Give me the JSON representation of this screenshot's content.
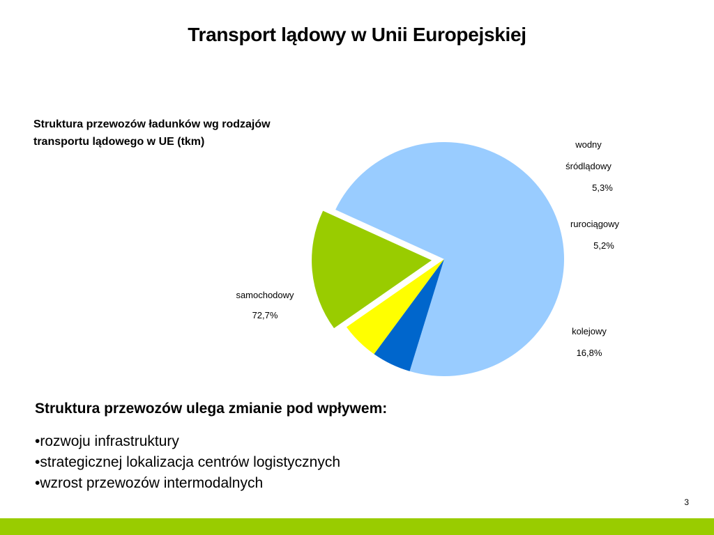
{
  "slide": {
    "title": "Transport lądowy w Unii Europejskiej",
    "page_number": "3",
    "footer_color": "#99cc00"
  },
  "chart_data": {
    "type": "pie",
    "title_lines": [
      "Struktura przewozów ładunków wg rodzajów",
      "transportu lądowego w UE (tkm)"
    ],
    "slices": [
      {
        "name": "samochodowy",
        "value": 72.7,
        "label": "72,7%",
        "color": "#99ccff"
      },
      {
        "name": "wodny śródlądowy",
        "name_lines": [
          "wodny",
          "śródlądowy"
        ],
        "value": 5.3,
        "label": "5,3%",
        "color": "#0066cc"
      },
      {
        "name": "rurociągowy",
        "value": 5.2,
        "label": "5,2%",
        "color": "#ffff00"
      },
      {
        "name": "kolejowy",
        "value": 16.8,
        "label": "16,8%",
        "color": "#99cc00",
        "exploded": true
      }
    ]
  },
  "notes": {
    "heading": "Struktura przewozów ulega zmianie pod wpływem:",
    "bullets": [
      "rozwoju infrastruktury",
      "strategicznej lokalizacja centrów logistycznych",
      "wzrost przewozów intermodalnych"
    ]
  }
}
